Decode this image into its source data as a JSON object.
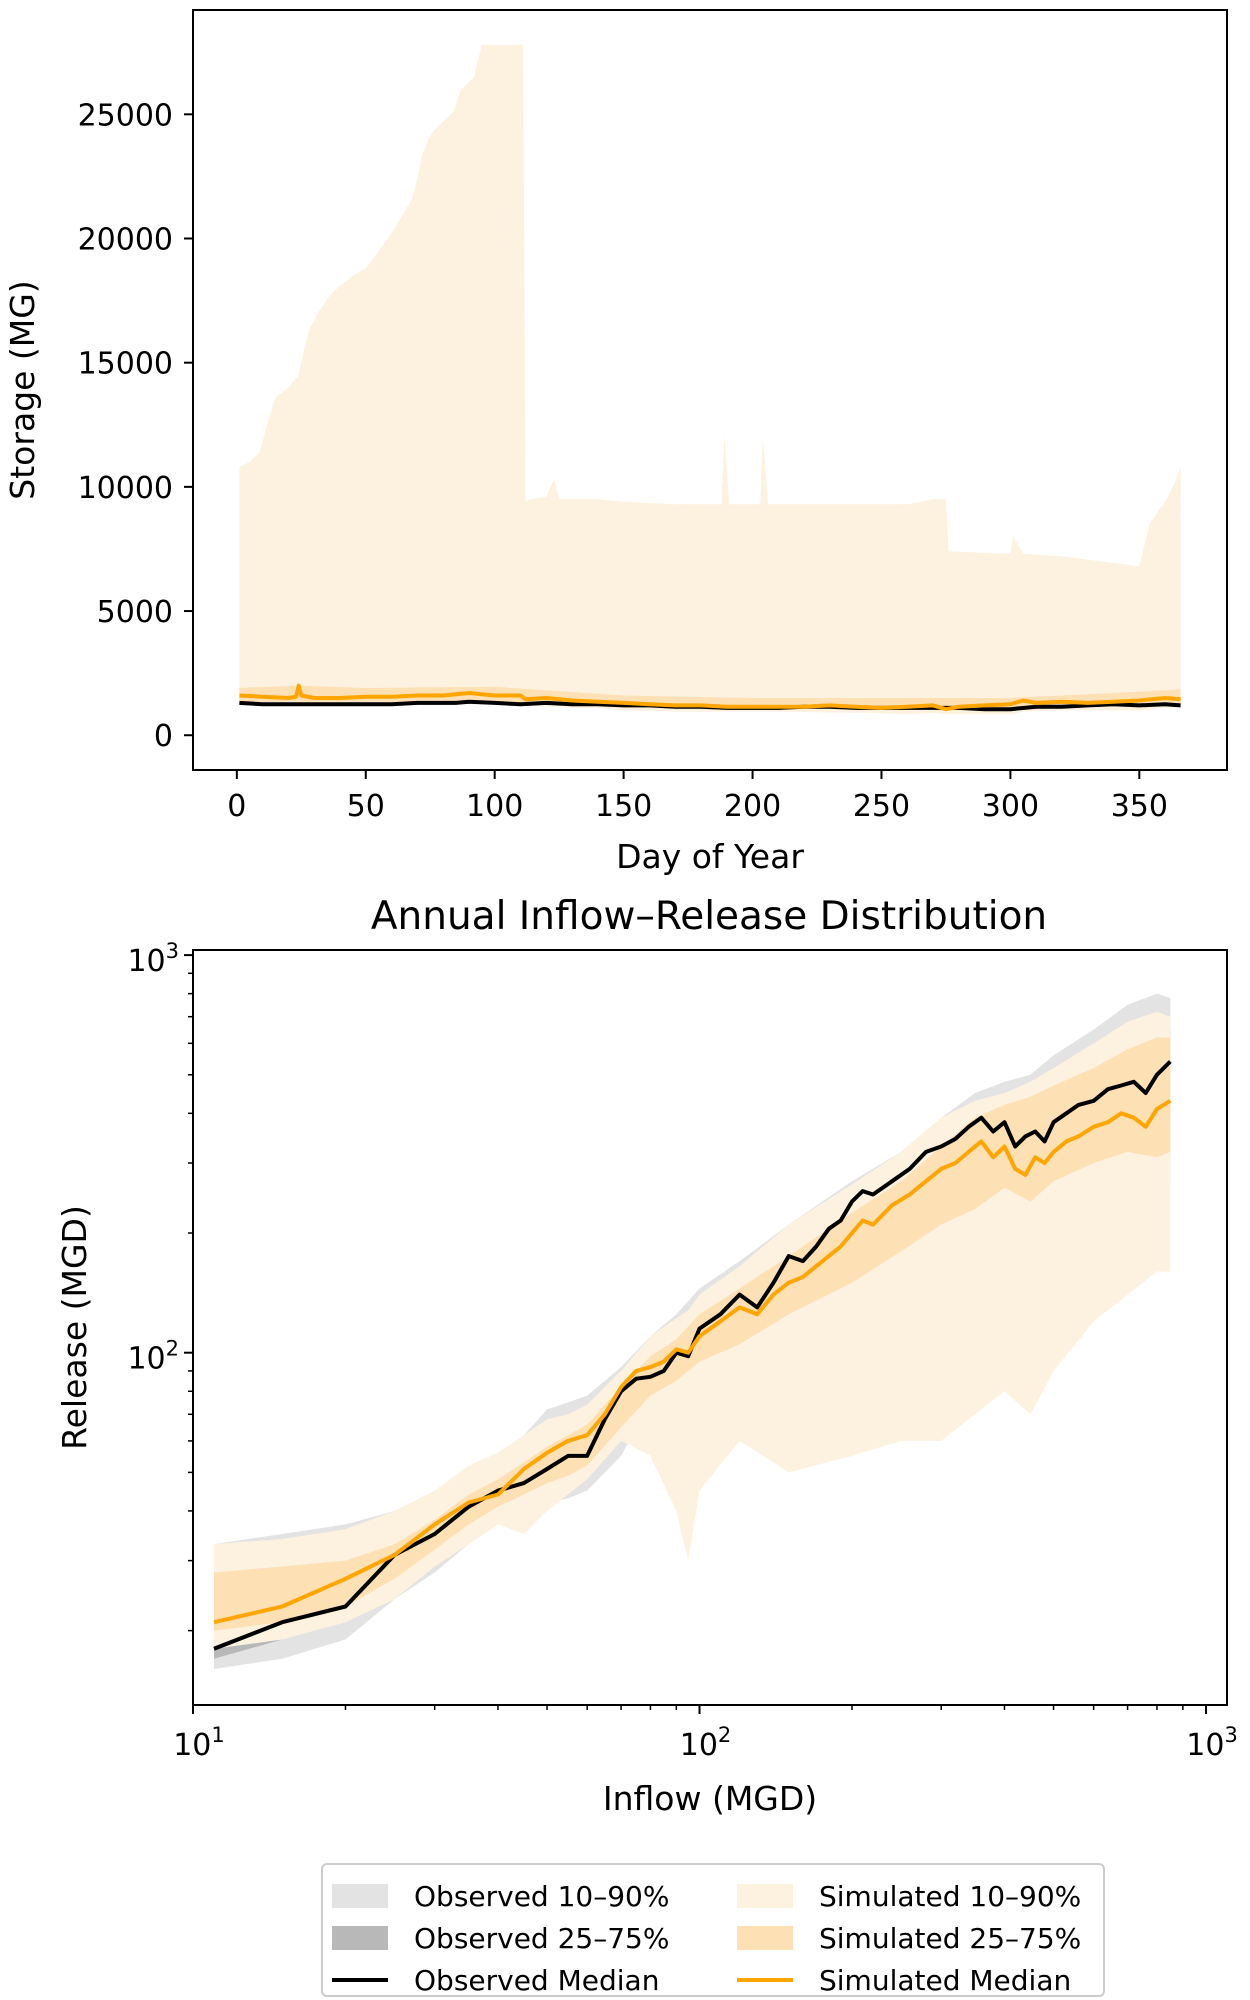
{
  "chart_data": [
    {
      "type": "area",
      "title": "",
      "xlabel": "Day of Year",
      "ylabel": "Storage (MG)",
      "xlim": [
        -17,
        384
      ],
      "ylim": [
        -1400,
        29200
      ],
      "xticks": [
        0,
        50,
        100,
        150,
        200,
        250,
        300,
        350
      ],
      "yticks": [
        0,
        5000,
        10000,
        15000,
        20000,
        25000
      ],
      "grid": false,
      "series": [
        {
          "name": "Simulated 10–90%",
          "kind": "band",
          "color": "#fdf1df",
          "x": [
            1,
            5,
            9,
            12,
            15,
            20,
            24,
            26,
            28,
            32,
            36,
            40,
            45,
            50,
            55,
            60,
            64,
            68,
            70,
            72,
            74,
            76,
            80,
            84,
            87,
            92,
            95,
            100,
            104,
            107,
            111,
            112,
            114,
            120,
            123,
            125,
            130,
            140,
            150,
            170,
            188,
            189,
            191,
            203,
            204,
            206,
            245,
            260,
            270,
            275,
            276,
            300,
            301,
            305,
            320,
            350,
            354,
            360,
            364,
            366
          ],
          "upper": [
            10800,
            11000,
            11400,
            12600,
            13600,
            14000,
            14500,
            15500,
            16300,
            17100,
            17700,
            18100,
            18500,
            18800,
            19500,
            20200,
            20900,
            21600,
            22400,
            23400,
            23900,
            24300,
            24700,
            25100,
            26000,
            26500,
            27800,
            27800,
            27800,
            27800,
            27800,
            9400,
            9500,
            9600,
            10300,
            9500,
            9500,
            9500,
            9400,
            9300,
            9300,
            12100,
            9300,
            9300,
            12000,
            9300,
            9300,
            9300,
            9500,
            9500,
            7400,
            7300,
            8000,
            7300,
            7200,
            6800,
            8500,
            9400,
            10200,
            10800
          ],
          "lower": [
            1300,
            1300,
            1200,
            1250,
            1300,
            1250,
            1250,
            1200,
            1250,
            1250,
            1200,
            1200,
            1250,
            1200,
            1250,
            1250,
            1250,
            1250,
            1250,
            1250,
            1250,
            1250,
            1300,
            1250,
            1300,
            1250,
            1300,
            1250,
            1200,
            1200,
            1200,
            1200,
            1200,
            1150,
            1150,
            1150,
            1100,
            1100,
            1000,
            950,
            950,
            950,
            950,
            950,
            950,
            950,
            900,
            850,
            900,
            850,
            850,
            850,
            850,
            950,
            1000,
            1000,
            1050,
            1100,
            1100,
            1150
          ]
        },
        {
          "name": "Simulated 25–75%",
          "kind": "band",
          "color": "#fde0b4",
          "x": [
            1,
            24,
            50,
            100,
            150,
            200,
            250,
            275,
            300,
            350,
            366
          ],
          "upper": [
            1900,
            2000,
            1900,
            1950,
            1600,
            1500,
            1500,
            1500,
            1500,
            1750,
            1850
          ],
          "lower": [
            1350,
            1350,
            1350,
            1350,
            1150,
            1100,
            1050,
            1000,
            1000,
            1200,
            1300
          ]
        },
        {
          "name": "Observed Median",
          "kind": "line",
          "color": "#000000",
          "x": [
            1,
            10,
            20,
            30,
            40,
            50,
            60,
            70,
            80,
            85,
            90,
            100,
            110,
            120,
            130,
            140,
            150,
            160,
            170,
            180,
            190,
            200,
            210,
            220,
            230,
            240,
            250,
            260,
            270,
            280,
            290,
            300,
            310,
            320,
            330,
            340,
            350,
            360,
            366
          ],
          "y": [
            1300,
            1250,
            1250,
            1250,
            1250,
            1250,
            1250,
            1300,
            1300,
            1300,
            1350,
            1300,
            1250,
            1300,
            1250,
            1250,
            1200,
            1200,
            1150,
            1150,
            1100,
            1100,
            1100,
            1150,
            1150,
            1100,
            1100,
            1100,
            1100,
            1100,
            1050,
            1050,
            1150,
            1150,
            1200,
            1250,
            1200,
            1250,
            1200
          ]
        },
        {
          "name": "Simulated Median",
          "kind": "line",
          "color": "#ffa500",
          "x": [
            1,
            10,
            20,
            23,
            24,
            25,
            30,
            40,
            50,
            60,
            70,
            80,
            85,
            90,
            100,
            110,
            112,
            120,
            130,
            140,
            150,
            160,
            170,
            180,
            190,
            200,
            210,
            220,
            230,
            240,
            250,
            260,
            270,
            275,
            280,
            290,
            300,
            305,
            310,
            320,
            330,
            340,
            350,
            360,
            366
          ],
          "y": [
            1600,
            1550,
            1500,
            1550,
            2000,
            1600,
            1500,
            1500,
            1550,
            1550,
            1600,
            1600,
            1650,
            1700,
            1600,
            1600,
            1450,
            1500,
            1400,
            1350,
            1300,
            1250,
            1200,
            1200,
            1150,
            1150,
            1150,
            1150,
            1200,
            1150,
            1100,
            1150,
            1200,
            1050,
            1150,
            1200,
            1250,
            1400,
            1300,
            1350,
            1300,
            1350,
            1400,
            1500,
            1450
          ]
        }
      ]
    },
    {
      "type": "line",
      "title": "Annual Inflow–Release Distribution",
      "xlabel": "Inflow (MGD)",
      "ylabel": "Release (MGD)",
      "xscale": "log",
      "yscale": "log",
      "xlim": [
        10,
        1100
      ],
      "ylim": [
        13,
        1030
      ],
      "xticks": [
        {
          "value": 10,
          "base": "10",
          "exp": "1"
        },
        {
          "value": 100,
          "base": "10",
          "exp": "2"
        },
        {
          "value": 1000,
          "base": "10",
          "exp": "3"
        }
      ],
      "yticks": [
        {
          "value": 100,
          "base": "10",
          "exp": "2"
        },
        {
          "value": 1000,
          "base": "10",
          "exp": "3"
        }
      ],
      "grid": false,
      "series": [
        {
          "name": "Observed 10–90%",
          "kind": "band",
          "color": "#e3e3e3",
          "x": [
            11,
            15,
            20,
            25,
            30,
            35,
            40,
            45,
            50,
            55,
            60,
            70,
            80,
            90,
            100,
            120,
            150,
            200,
            250,
            300,
            350,
            400,
            450,
            500,
            600,
            700,
            800,
            850
          ],
          "upper": [
            33,
            35,
            37,
            40,
            44,
            50,
            55,
            62,
            72,
            75,
            78,
            92,
            110,
            125,
            145,
            170,
            210,
            270,
            320,
            390,
            450,
            480,
            500,
            560,
            650,
            750,
            800,
            780
          ],
          "lower": [
            16,
            17,
            19,
            24,
            28,
            33,
            37,
            40,
            42,
            43,
            45,
            55,
            75,
            85,
            100,
            110,
            130,
            150,
            180,
            200,
            220,
            260,
            240,
            280,
            290,
            300,
            280,
            270
          ]
        },
        {
          "name": "Observed 25–75%",
          "kind": "band",
          "color": "#b8b8b8",
          "x": [
            11,
            15,
            20,
            25,
            30,
            35,
            40,
            45,
            50,
            55,
            60,
            70,
            80,
            90,
            100,
            120,
            150,
            200,
            250,
            300,
            350,
            400,
            450,
            500,
            600,
            700,
            800,
            850
          ],
          "upper": [
            24,
            25,
            26,
            30,
            36,
            41,
            46,
            52,
            58,
            62,
            66,
            80,
            95,
            105,
            125,
            145,
            175,
            220,
            260,
            320,
            380,
            400,
            420,
            460,
            530,
            600,
            650,
            650
          ],
          "lower": [
            17,
            19,
            22,
            27,
            31,
            36,
            40,
            44,
            47,
            49,
            52,
            65,
            82,
            92,
            108,
            120,
            145,
            175,
            210,
            240,
            270,
            300,
            290,
            330,
            360,
            380,
            370,
            380
          ]
        },
        {
          "name": "Simulated 10–90%",
          "kind": "band",
          "color": "#fdf1df",
          "x": [
            11,
            15,
            20,
            25,
            30,
            35,
            40,
            45,
            50,
            55,
            60,
            70,
            80,
            90,
            95,
            100,
            120,
            150,
            200,
            250,
            300,
            350,
            400,
            450,
            500,
            600,
            700,
            800,
            850
          ],
          "upper": [
            33,
            34,
            36,
            40,
            45,
            52,
            56,
            62,
            68,
            70,
            74,
            90,
            110,
            122,
            128,
            140,
            165,
            210,
            265,
            320,
            390,
            430,
            450,
            480,
            520,
            600,
            680,
            720,
            700
          ],
          "lower": [
            18,
            19,
            21,
            24,
            29,
            33,
            37,
            35,
            40,
            44,
            48,
            60,
            55,
            40,
            30,
            45,
            60,
            50,
            55,
            60,
            60,
            70,
            80,
            70,
            90,
            120,
            140,
            160,
            160
          ]
        },
        {
          "name": "Simulated 25–75%",
          "kind": "band",
          "color": "#fde0b4",
          "x": [
            11,
            15,
            20,
            25,
            30,
            35,
            40,
            45,
            50,
            55,
            60,
            70,
            80,
            90,
            100,
            120,
            150,
            200,
            250,
            300,
            350,
            400,
            450,
            500,
            600,
            700,
            800,
            850
          ],
          "upper": [
            28,
            29,
            30,
            33,
            38,
            44,
            48,
            53,
            58,
            62,
            66,
            82,
            98,
            108,
            125,
            145,
            175,
            225,
            270,
            330,
            390,
            420,
            440,
            470,
            520,
            580,
            620,
            620
          ],
          "lower": [
            20,
            21,
            23,
            27,
            32,
            37,
            41,
            44,
            47,
            49,
            52,
            65,
            78,
            85,
            95,
            105,
            125,
            150,
            180,
            210,
            230,
            260,
            240,
            270,
            300,
            320,
            310,
            320
          ]
        },
        {
          "name": "Observed Median",
          "kind": "line",
          "color": "#000000",
          "x": [
            11,
            15,
            20,
            25,
            30,
            35,
            40,
            45,
            50,
            55,
            60,
            65,
            70,
            75,
            80,
            85,
            90,
            95,
            100,
            110,
            120,
            130,
            140,
            150,
            160,
            170,
            180,
            190,
            200,
            210,
            220,
            240,
            260,
            280,
            300,
            320,
            340,
            360,
            380,
            400,
            420,
            440,
            460,
            480,
            500,
            530,
            560,
            600,
            640,
            680,
            720,
            760,
            800,
            850
          ],
          "y": [
            18,
            21,
            23,
            31,
            35,
            41,
            45,
            47,
            51,
            55,
            55,
            68,
            80,
            86,
            87,
            90,
            100,
            98,
            115,
            125,
            140,
            130,
            150,
            175,
            170,
            185,
            205,
            215,
            240,
            255,
            250,
            270,
            290,
            320,
            330,
            345,
            370,
            390,
            360,
            380,
            330,
            350,
            360,
            340,
            380,
            400,
            420,
            430,
            460,
            470,
            480,
            450,
            500,
            540
          ]
        },
        {
          "name": "Simulated Median",
          "kind": "line",
          "color": "#ffa500",
          "x": [
            11,
            15,
            20,
            25,
            30,
            35,
            40,
            45,
            50,
            55,
            60,
            65,
            70,
            75,
            80,
            85,
            90,
            95,
            100,
            110,
            120,
            130,
            140,
            150,
            160,
            170,
            180,
            190,
            200,
            210,
            220,
            240,
            260,
            280,
            300,
            320,
            340,
            360,
            380,
            400,
            420,
            440,
            460,
            480,
            500,
            530,
            560,
            600,
            640,
            680,
            720,
            760,
            800,
            850
          ],
          "y": [
            21,
            23,
            27,
            31,
            37,
            42,
            44,
            51,
            56,
            60,
            62,
            70,
            82,
            90,
            92,
            95,
            102,
            100,
            110,
            120,
            130,
            125,
            140,
            150,
            155,
            165,
            175,
            185,
            200,
            215,
            210,
            235,
            250,
            270,
            290,
            300,
            320,
            340,
            310,
            330,
            290,
            280,
            310,
            300,
            320,
            340,
            350,
            370,
            380,
            400,
            390,
            370,
            410,
            430
          ]
        }
      ]
    }
  ],
  "legend": {
    "placement": "bottom-center",
    "items": [
      {
        "label": "Observed 10–90%",
        "kind": "patch",
        "color": "#e3e3e3"
      },
      {
        "label": "Observed 25–75%",
        "kind": "patch",
        "color": "#b8b8b8"
      },
      {
        "label": "Observed Median",
        "kind": "line",
        "color": "#000000"
      },
      {
        "label": "Simulated 10–90%",
        "kind": "patch",
        "color": "#fdf1df"
      },
      {
        "label": "Simulated 25–75%",
        "kind": "patch",
        "color": "#fde0b4"
      },
      {
        "label": "Simulated Median",
        "kind": "line",
        "color": "#ffa500"
      }
    ]
  }
}
